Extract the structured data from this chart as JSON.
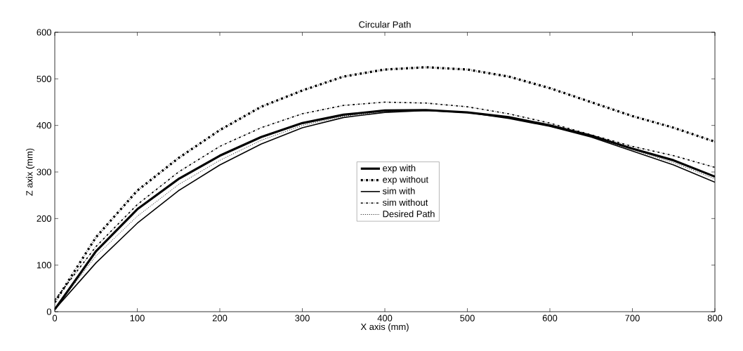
{
  "chart_data": {
    "type": "line",
    "title": "Circular Path",
    "xlabel": "X axis (mm)",
    "ylabel": "Z axix (mm)",
    "x": [
      0,
      50,
      100,
      150,
      200,
      250,
      300,
      350,
      400,
      450,
      500,
      550,
      600,
      650,
      700,
      750,
      800
    ],
    "series": [
      {
        "name": "exp with",
        "color": "#000000",
        "line_style": "solid",
        "values": [
          5,
          130,
          220,
          285,
          335,
          375,
          405,
          423,
          432,
          433,
          428,
          418,
          400,
          378,
          350,
          325,
          290
        ]
      },
      {
        "name": "exp without",
        "color": "#000000",
        "line_style": "dashdot",
        "values": [
          20,
          160,
          260,
          330,
          390,
          440,
          475,
          505,
          520,
          525,
          520,
          505,
          480,
          450,
          420,
          395,
          365
        ]
      },
      {
        "name": "sim with",
        "color": "#000000",
        "line_style": "solid",
        "values": [
          5,
          105,
          190,
          260,
          315,
          360,
          395,
          417,
          428,
          432,
          428,
          415,
          398,
          375,
          345,
          315,
          278
        ]
      },
      {
        "name": "sim without",
        "color": "#000000",
        "line_style": "dashdot",
        "values": [
          25,
          140,
          230,
          300,
          355,
          395,
          425,
          443,
          450,
          448,
          440,
          425,
          405,
          380,
          355,
          335,
          310
        ]
      },
      {
        "name": "Desired Path",
        "color": "#000000",
        "line_style": "dotted",
        "values": [
          5,
          120,
          205,
          273,
          325,
          368,
          400,
          420,
          430,
          433,
          428,
          416,
          399,
          376,
          348,
          320,
          285
        ]
      }
    ],
    "xlim": [
      0,
      800
    ],
    "ylim": [
      0,
      600
    ],
    "xticks": [
      0,
      100,
      200,
      300,
      400,
      500,
      600,
      700,
      800
    ],
    "yticks": [
      0,
      100,
      200,
      300,
      400,
      500,
      600
    ],
    "grid": false,
    "legend": "center"
  }
}
